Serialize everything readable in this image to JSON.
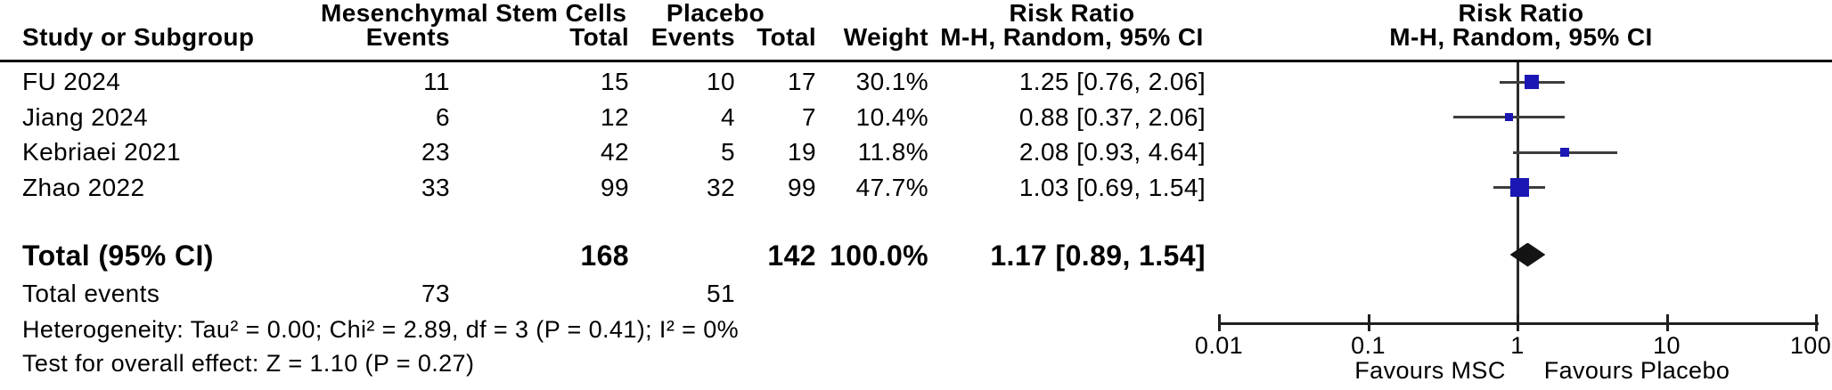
{
  "header": {
    "group1": "Mesenchymal Stem Cells",
    "group2": "Placebo",
    "risk_ratio_title": "Risk Ratio",
    "col_study": "Study or Subgroup",
    "col_events": "Events",
    "col_total": "Total",
    "col_weight": "Weight",
    "method_label": "M-H, Random, 95% CI"
  },
  "studies": [
    {
      "name": "FU 2024",
      "events1": "11",
      "total1": "15",
      "events2": "10",
      "total2": "17",
      "weight": "30.1%",
      "rr_text": "1.25 [0.76, 2.06]",
      "rr": 1.25,
      "ci_low": 0.76,
      "ci_high": 2.06,
      "weight_value": 30.1
    },
    {
      "name": "Jiang 2024",
      "events1": "6",
      "total1": "12",
      "events2": "4",
      "total2": "7",
      "weight": "10.4%",
      "rr_text": "0.88 [0.37, 2.06]",
      "rr": 0.88,
      "ci_low": 0.37,
      "ci_high": 2.06,
      "weight_value": 10.4
    },
    {
      "name": "Kebriaei 2021",
      "events1": "23",
      "total1": "42",
      "events2": "5",
      "total2": "19",
      "weight": "11.8%",
      "rr_text": "2.08 [0.93, 4.64]",
      "rr": 2.08,
      "ci_low": 0.93,
      "ci_high": 4.64,
      "weight_value": 11.8
    },
    {
      "name": "Zhao 2022",
      "events1": "33",
      "total1": "99",
      "events2": "32",
      "total2": "99",
      "weight": "47.7%",
      "rr_text": "1.03 [0.69, 1.54]",
      "rr": 1.03,
      "ci_low": 0.69,
      "ci_high": 1.54,
      "weight_value": 47.7
    }
  ],
  "totals": {
    "label": "Total (95% CI)",
    "total1": "168",
    "total2": "142",
    "weight": "100.0%",
    "rr_text": "1.17 [0.89, 1.54]",
    "events_label": "Total events",
    "events1": "73",
    "events2": "51"
  },
  "footer": {
    "heterogeneity": "Heterogeneity: Tau² = 0.00; Chi² = 2.89, df = 3 (P = 0.41); I² = 0%",
    "overall_effect": "Test for overall effect: Z = 1.10 (P = 0.27)"
  },
  "chart_data": {
    "type": "scatter",
    "subtype": "forest-plot",
    "title": "Risk Ratio",
    "method": "M-H, Random, 95% CI",
    "x_scale": "log10",
    "x_range": [
      0.01,
      100
    ],
    "x_ticks": [
      0.01,
      0.1,
      1,
      10,
      100
    ],
    "axis_footnote_left": "Favours MSC",
    "axis_footnote_right": "Favours Placebo",
    "points": [
      {
        "label": "FU 2024",
        "rr": 1.25,
        "ci": [
          0.76,
          2.06
        ],
        "weight_pct": 30.1
      },
      {
        "label": "Jiang 2024",
        "rr": 0.88,
        "ci": [
          0.37,
          2.06
        ],
        "weight_pct": 10.4
      },
      {
        "label": "Kebriaei 2021",
        "rr": 2.08,
        "ci": [
          0.93,
          4.64
        ],
        "weight_pct": 11.8
      },
      {
        "label": "Zhao 2022",
        "rr": 1.03,
        "ci": [
          0.69,
          1.54
        ],
        "weight_pct": 47.7
      }
    ],
    "overall": {
      "label": "Total (95% CI)",
      "rr": 1.17,
      "ci": [
        0.89,
        1.54
      ],
      "events1": 73,
      "events2": 51,
      "n1": 168,
      "n2": 142
    }
  },
  "colors": {
    "square": "#1a17b4",
    "diamond": "#141414",
    "ci_line": "#3d3d3d",
    "axis": "#1f1f1f",
    "rule": "#000000"
  }
}
